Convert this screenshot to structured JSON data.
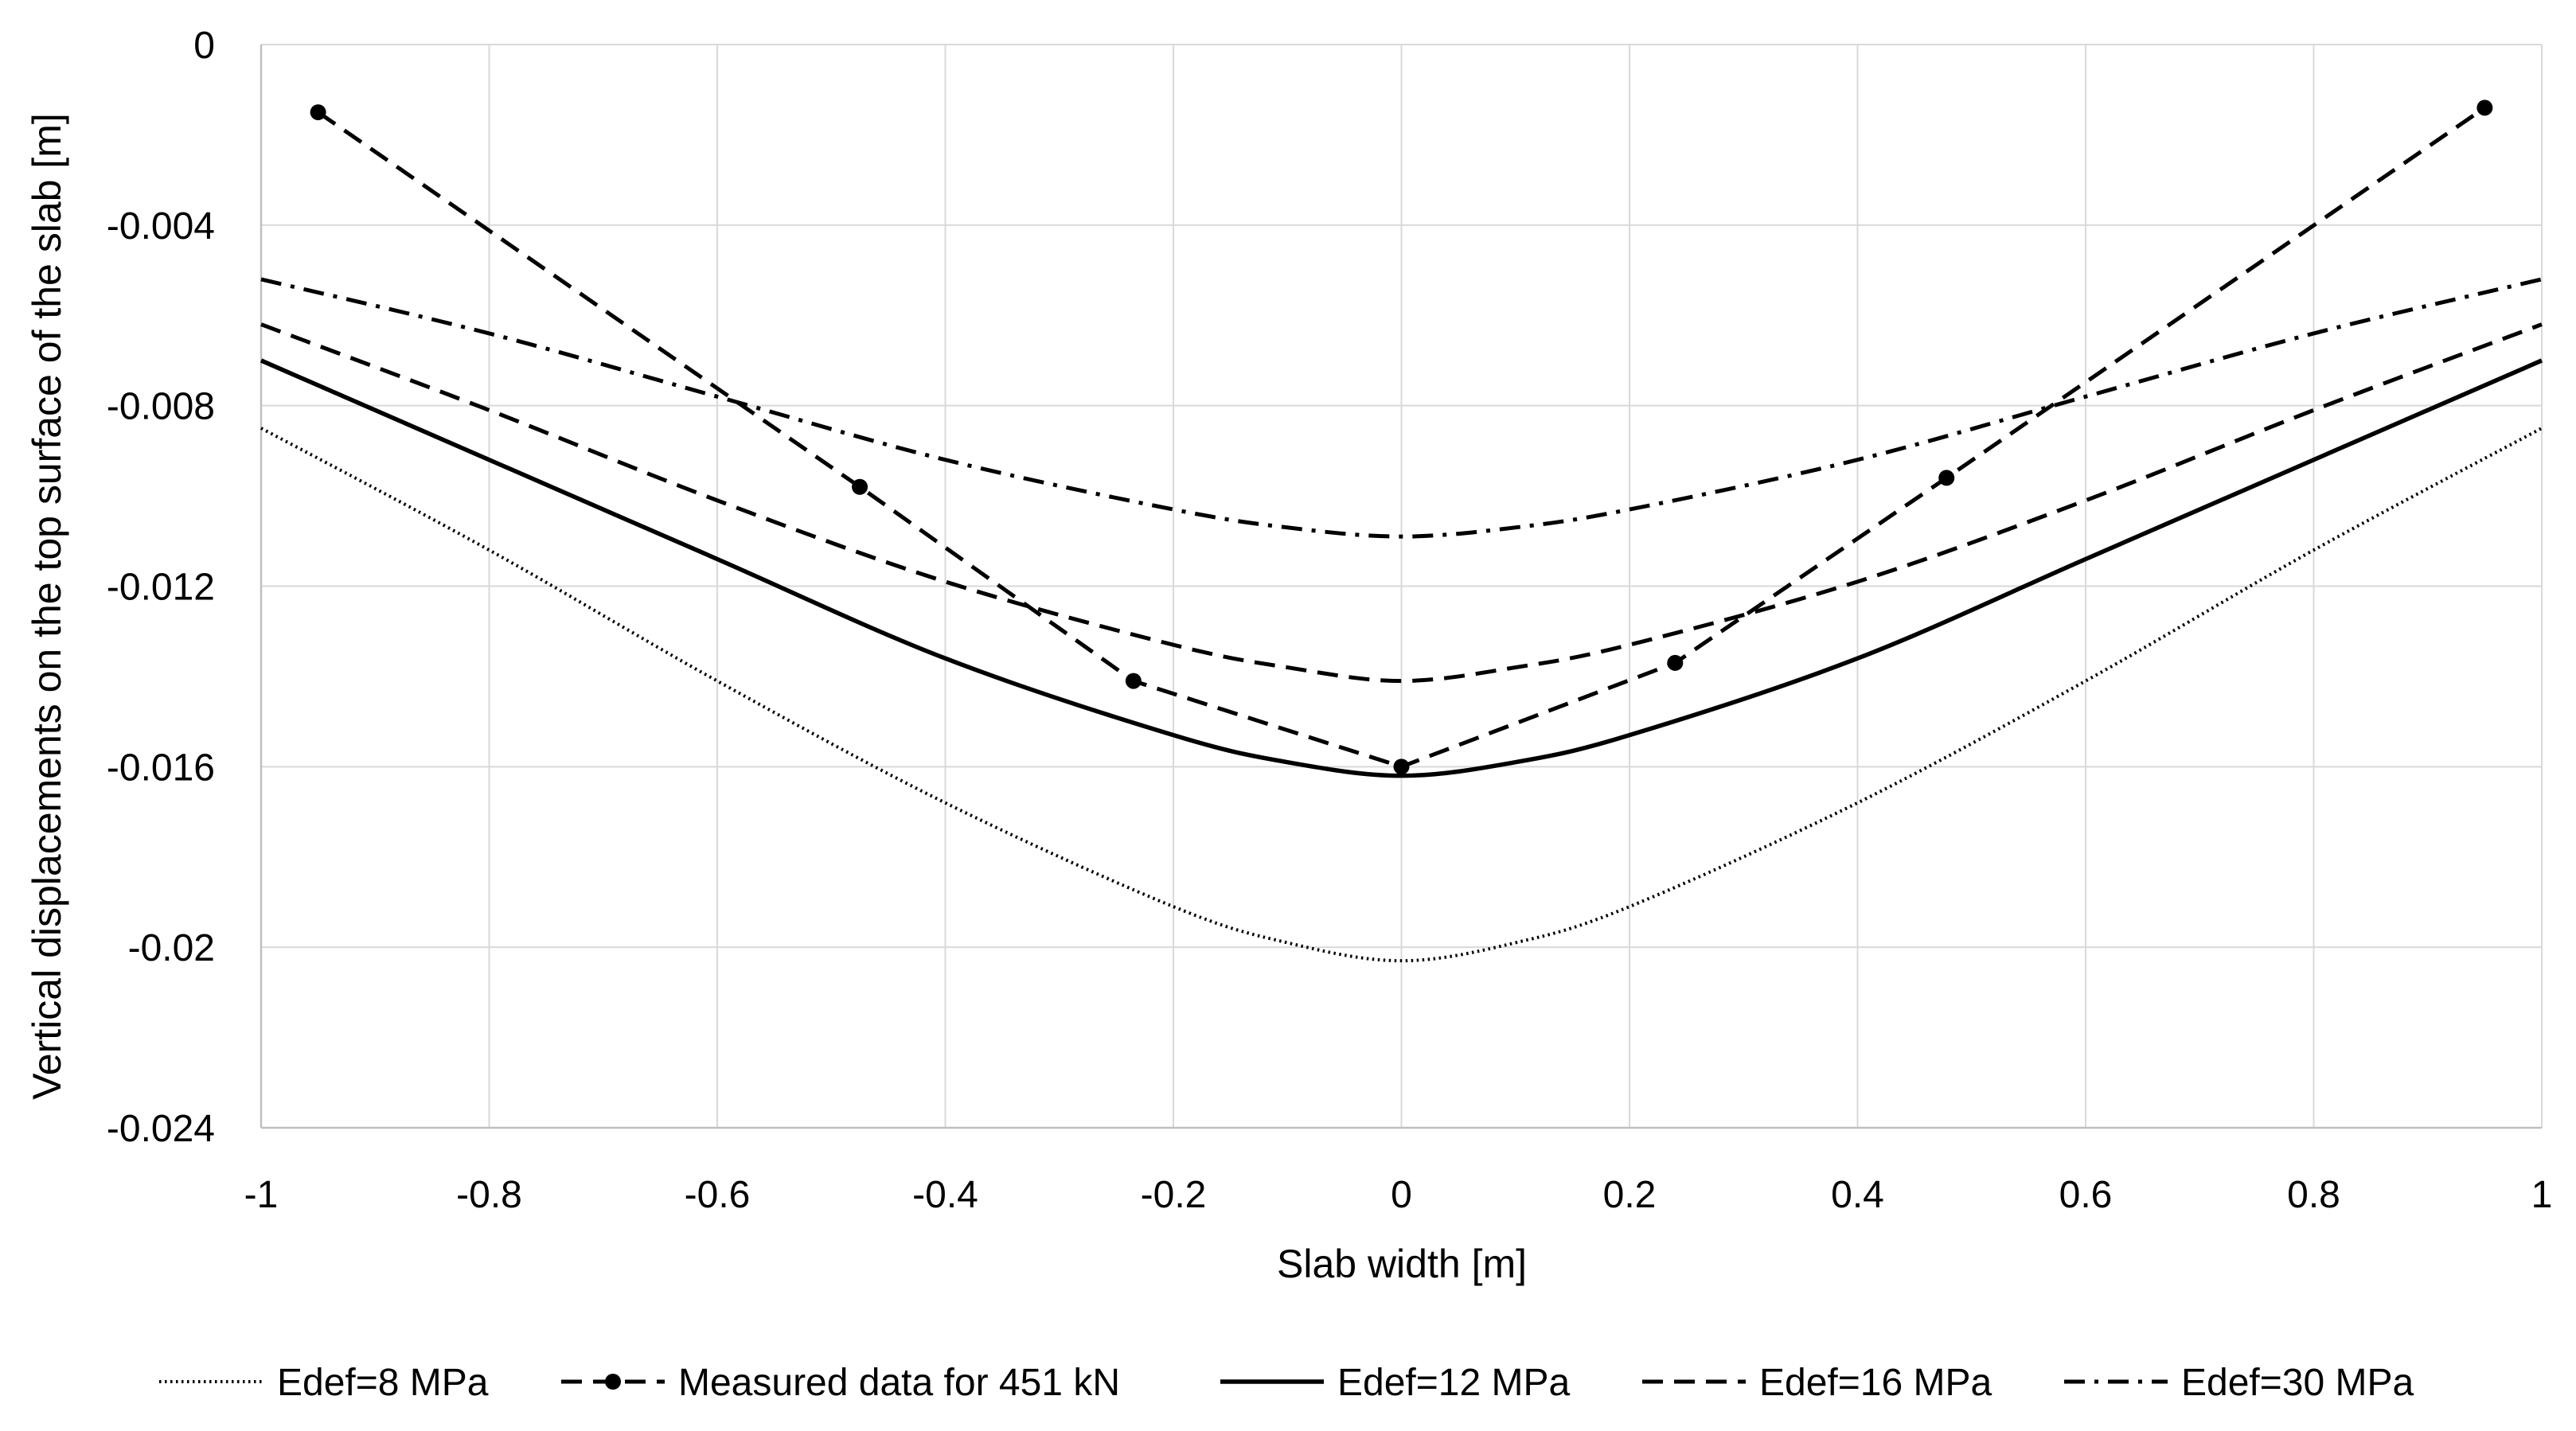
{
  "chart_data": {
    "type": "line",
    "title": "",
    "xlabel": "Slab width [m]",
    "ylabel": "Vertical displacements on the top surface of the slab [m]",
    "xlim": [
      -1,
      1
    ],
    "ylim": [
      -0.024,
      0
    ],
    "grid": true,
    "legend_position": "bottom",
    "x_ticks": [
      -1,
      -0.8,
      -0.6,
      -0.4,
      -0.2,
      0,
      0.2,
      0.4,
      0.6,
      0.8,
      1
    ],
    "x_tick_labels": [
      "-1",
      "-0.8",
      "-0.6",
      "-0.4",
      "-0.2",
      "0",
      "0.2",
      "0.4",
      "0.6",
      "0.8",
      "1"
    ],
    "y_ticks": [
      0,
      -0.004,
      -0.008,
      -0.012,
      -0.016,
      -0.02,
      -0.024
    ],
    "y_tick_labels": [
      "0",
      "-0.004",
      "-0.008",
      "-0.012",
      "-0.016",
      "-0.02",
      "-0.024"
    ],
    "series": [
      {
        "name": "Edef=8 MPa",
        "style": "dotted",
        "markers": false,
        "x": [
          -1,
          -0.8,
          -0.6,
          -0.4,
          -0.2,
          -0.1,
          0,
          0.1,
          0.2,
          0.4,
          0.6,
          0.8,
          1
        ],
        "y": [
          -0.0085,
          -0.0112,
          -0.0141,
          -0.0168,
          -0.0191,
          -0.0199,
          -0.0203,
          -0.0199,
          -0.0191,
          -0.0168,
          -0.0141,
          -0.0112,
          -0.0085
        ]
      },
      {
        "name": "Measured data for 451 kN",
        "style": "dashed",
        "markers": true,
        "x": [
          -0.95,
          -0.475,
          -0.235,
          0,
          0.24,
          0.478,
          0.95
        ],
        "y": [
          -0.0015,
          -0.0098,
          -0.0141,
          -0.016,
          -0.0137,
          -0.0096,
          -0.0014
        ]
      },
      {
        "name": "Edef=12 MPa",
        "style": "solid",
        "markers": false,
        "x": [
          -1,
          -0.8,
          -0.6,
          -0.4,
          -0.2,
          -0.1,
          0,
          0.1,
          0.2,
          0.4,
          0.6,
          0.8,
          1
        ],
        "y": [
          -0.007,
          -0.0092,
          -0.0114,
          -0.0136,
          -0.0153,
          -0.0159,
          -0.0162,
          -0.0159,
          -0.0153,
          -0.0136,
          -0.0114,
          -0.0092,
          -0.007
        ]
      },
      {
        "name": "Edef=16 MPa",
        "style": "dashed",
        "markers": false,
        "x": [
          -1,
          -0.8,
          -0.6,
          -0.4,
          -0.2,
          -0.1,
          0,
          0.1,
          0.2,
          0.4,
          0.6,
          0.8,
          1
        ],
        "y": [
          -0.0062,
          -0.0081,
          -0.0101,
          -0.0119,
          -0.0133,
          -0.0138,
          -0.0141,
          -0.0138,
          -0.0133,
          -0.0119,
          -0.0101,
          -0.0081,
          -0.0062
        ]
      },
      {
        "name": "Edef=30 MPa",
        "style": "dashdot",
        "markers": false,
        "x": [
          -1,
          -0.8,
          -0.6,
          -0.4,
          -0.2,
          -0.1,
          0,
          0.1,
          0.2,
          0.4,
          0.6,
          0.8,
          1
        ],
        "y": [
          -0.0052,
          -0.0064,
          -0.0078,
          -0.0092,
          -0.0103,
          -0.0107,
          -0.0109,
          -0.0107,
          -0.0103,
          -0.0092,
          -0.0078,
          -0.0064,
          -0.0052
        ]
      }
    ]
  }
}
